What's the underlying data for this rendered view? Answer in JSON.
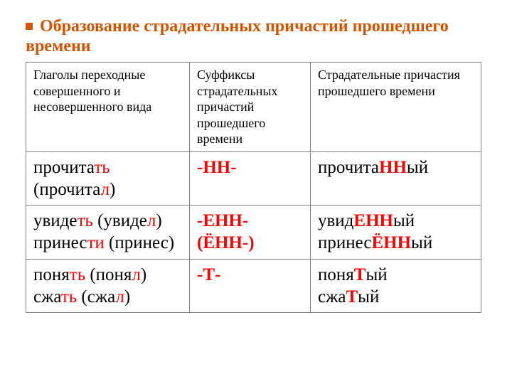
{
  "title_line1": "Образование страдательных причастий прошедшего",
  "title_line2": "времени",
  "columns": {
    "a": "Глаголы переходные совершенного и несовершенного вида",
    "b": "Суффиксы страдательных причастий прошедшего времени",
    "c": "Страдательные причастия прошедшего времени"
  },
  "rows": [
    {
      "verb": {
        "parts": [
          "прочита",
          {
            "red": "ть"
          },
          " (прочита",
          {
            "red": "л"
          },
          ")"
        ]
      },
      "suffix": {
        "parts": [
          {
            "redb": "-НН-"
          }
        ]
      },
      "part": {
        "parts": [
          "прочита",
          {
            "redb": "НН"
          },
          "ый"
        ]
      }
    },
    {
      "verb": {
        "parts": [
          "увиде",
          {
            "red": "ть"
          },
          " (увиде",
          {
            "red": "л"
          },
          ")",
          "<br>",
          "принес",
          {
            "red": "ти"
          },
          " (принес)"
        ]
      },
      "suffix": {
        "parts": [
          {
            "redb": "-ЕНН-"
          },
          "<br>",
          {
            "redb": "(ЁНН-)"
          }
        ]
      },
      "part": {
        "parts": [
          "увид",
          {
            "redb": "ЕНН"
          },
          "ый",
          "<br>",
          "принес",
          {
            "redb": "ЁНН"
          },
          "ый"
        ]
      }
    },
    {
      "verb": {
        "parts": [
          "поня",
          {
            "red": "ть"
          },
          " (поня",
          {
            "red": "л"
          },
          ")",
          "<br>",
          "сжа",
          {
            "red": "ть"
          },
          " (сжа",
          {
            "red": "л"
          },
          ")"
        ]
      },
      "suffix": {
        "parts": [
          {
            "redb": "-Т-"
          }
        ]
      },
      "part": {
        "parts": [
          "поня",
          {
            "redb": "Т"
          },
          "ый",
          "<br>",
          "сжа",
          {
            "redb": "Т"
          },
          "ый"
        ]
      }
    }
  ],
  "colors": {
    "title": "#d35400",
    "red": "#ff0000",
    "border": "#808080",
    "text": "#000000",
    "background": "#ffffff"
  }
}
